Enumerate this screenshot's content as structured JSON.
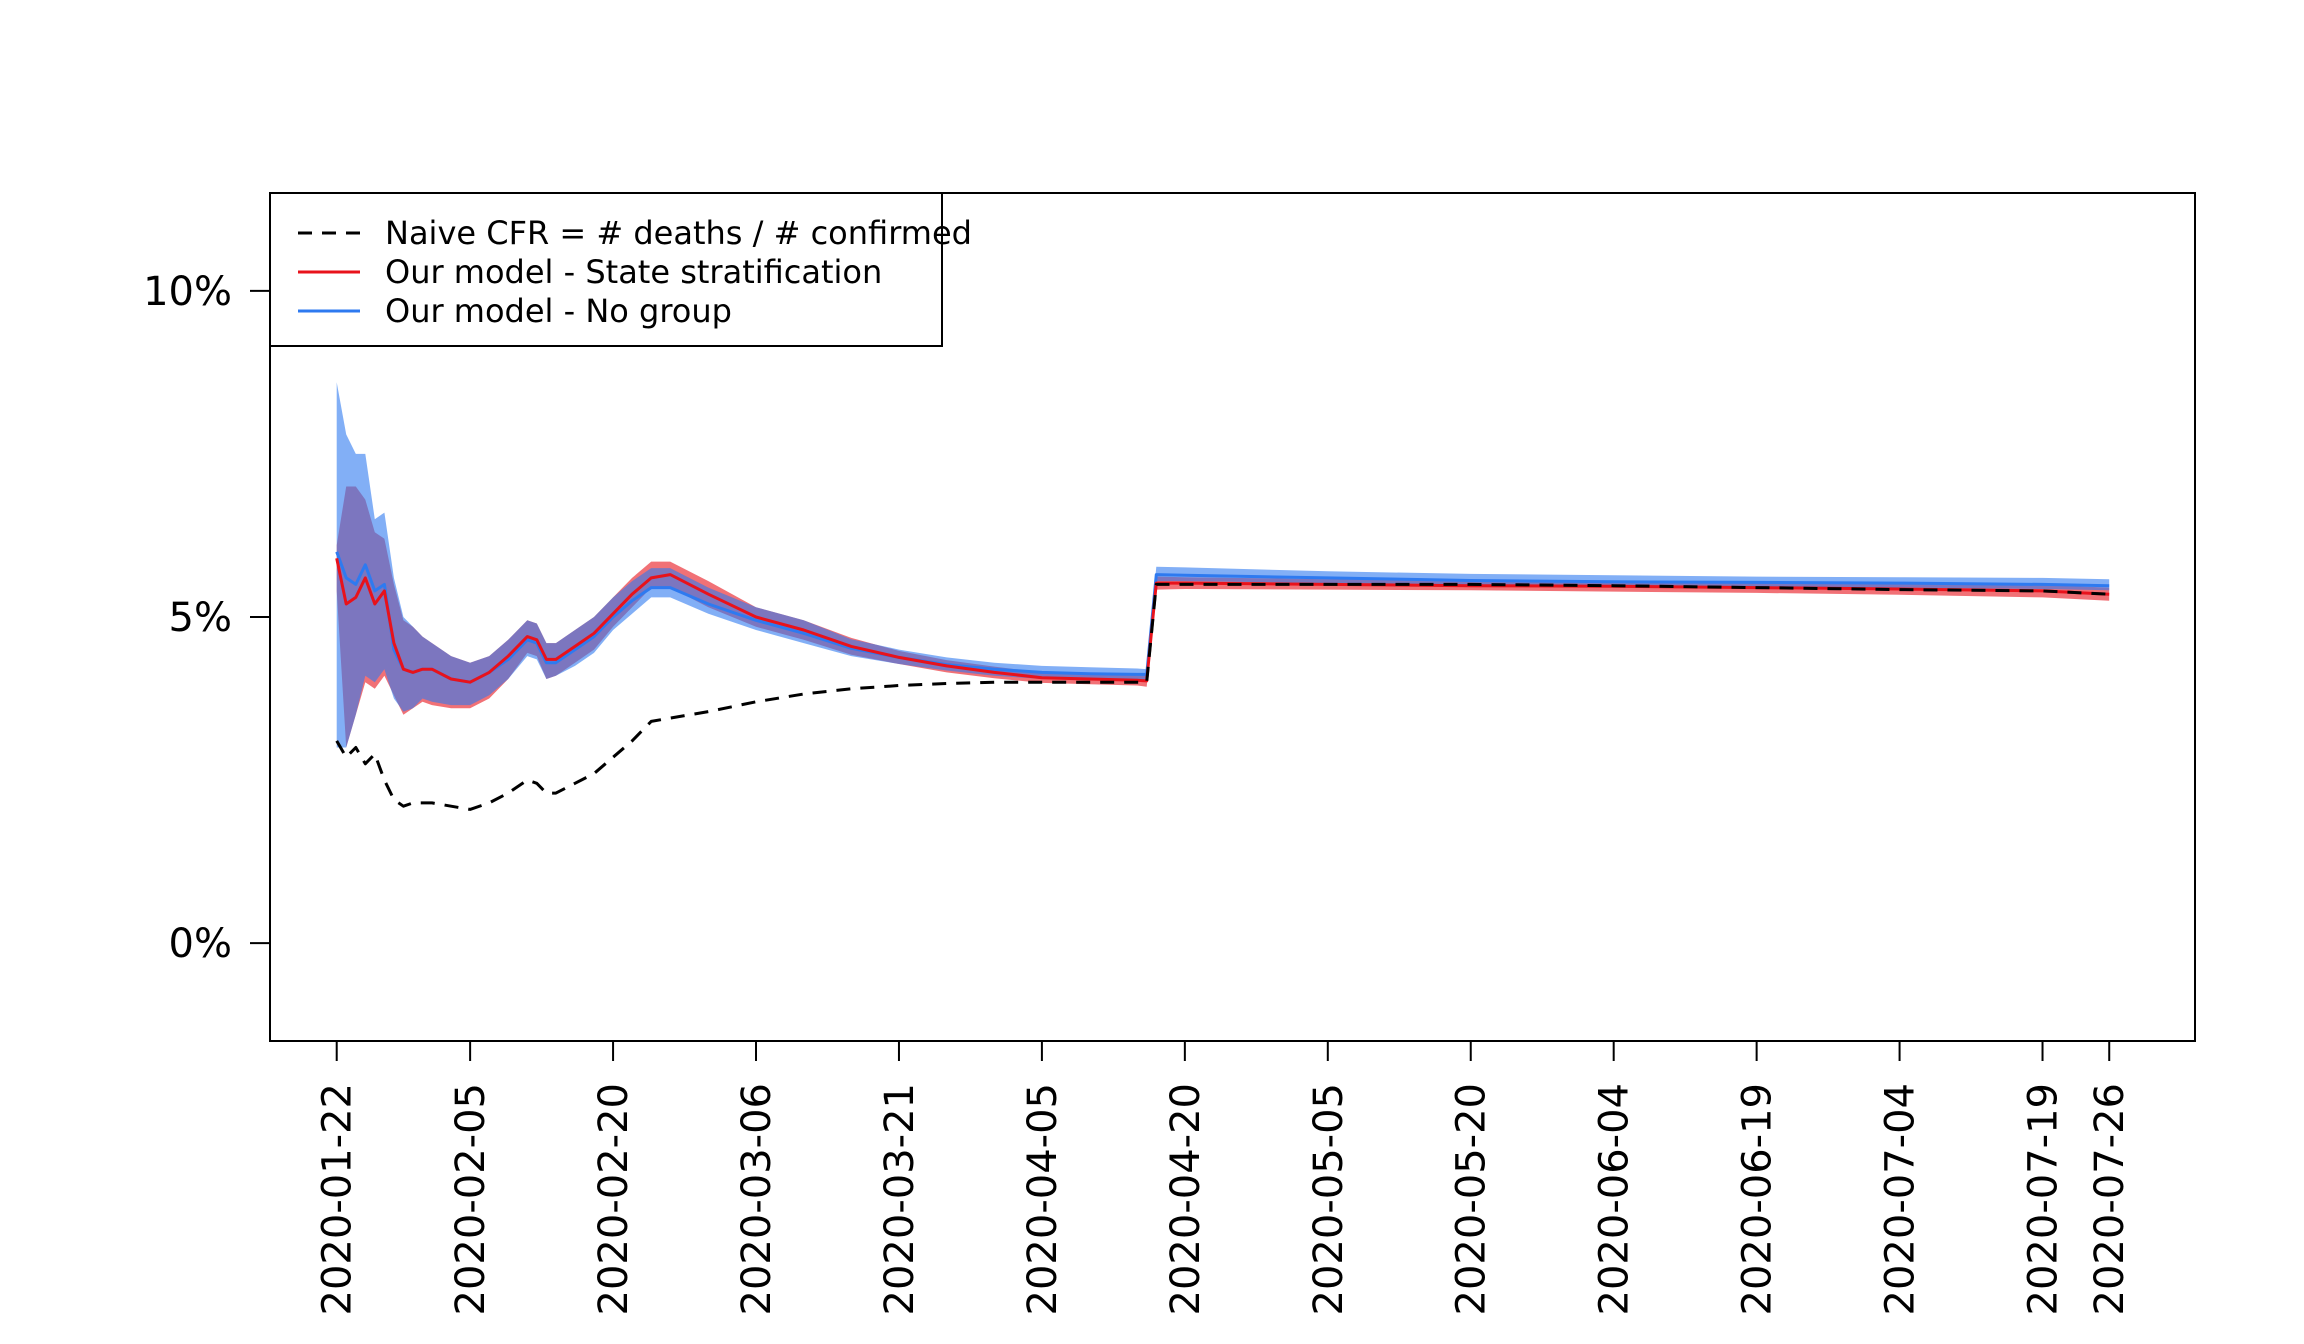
{
  "chart_data": {
    "type": "line",
    "title": "",
    "xlabel": "",
    "ylabel": "",
    "ylim": [
      -1.5,
      11.5
    ],
    "xlim": [
      "2020-01-15",
      "2020-08-04"
    ],
    "y_ticks": [
      {
        "value": 0,
        "label": "0%"
      },
      {
        "value": 5,
        "label": "5%"
      },
      {
        "value": 10,
        "label": "10%"
      }
    ],
    "x_ticks": [
      "2020-01-22",
      "2020-02-05",
      "2020-02-20",
      "2020-03-06",
      "2020-03-21",
      "2020-04-05",
      "2020-04-20",
      "2020-05-05",
      "2020-05-20",
      "2020-06-04",
      "2020-06-19",
      "2020-07-04",
      "2020-07-19",
      "2020-07-26"
    ],
    "legend": {
      "position": "top-left",
      "entries": [
        {
          "label": "Naive CFR = # deaths / # confirmed",
          "color": "#000000",
          "dash": "dashed"
        },
        {
          "label": "Our model - State stratification",
          "color": "#e8121b",
          "dash": "solid"
        },
        {
          "label": "Our model - No group",
          "color": "#2e7af0",
          "dash": "solid"
        }
      ]
    },
    "colors": {
      "naive": "#000000",
      "state": "#e8121b",
      "state_band": "#e8121b",
      "nogroup": "#2e7af0",
      "nogroup_band": "#2e7af0"
    },
    "series": [
      {
        "name": "Naive CFR = # deaths / # confirmed",
        "x": [
          "2020-01-22",
          "2020-01-23",
          "2020-01-24",
          "2020-01-25",
          "2020-01-26",
          "2020-01-27",
          "2020-01-28",
          "2020-01-29",
          "2020-01-30",
          "2020-01-31",
          "2020-02-01",
          "2020-02-03",
          "2020-02-05",
          "2020-02-07",
          "2020-02-09",
          "2020-02-11",
          "2020-02-12",
          "2020-02-13",
          "2020-02-14",
          "2020-02-16",
          "2020-02-18",
          "2020-02-20",
          "2020-02-22",
          "2020-02-24",
          "2020-02-26",
          "2020-03-01",
          "2020-03-06",
          "2020-03-11",
          "2020-03-16",
          "2020-03-21",
          "2020-03-26",
          "2020-03-31",
          "2020-04-05",
          "2020-04-10",
          "2020-04-15",
          "2020-04-16",
          "2020-04-17",
          "2020-04-20",
          "2020-05-05",
          "2020-05-20",
          "2020-06-04",
          "2020-06-19",
          "2020-07-04",
          "2020-07-19",
          "2020-07-26"
        ],
        "y": [
          3.1,
          2.85,
          3.0,
          2.75,
          2.9,
          2.5,
          2.2,
          2.1,
          2.15,
          2.15,
          2.15,
          2.1,
          2.05,
          2.15,
          2.3,
          2.5,
          2.45,
          2.3,
          2.3,
          2.45,
          2.6,
          2.85,
          3.1,
          3.4,
          3.45,
          3.55,
          3.7,
          3.82,
          3.9,
          3.95,
          3.98,
          4.0,
          4.0,
          4.0,
          4.0,
          4.0,
          5.5,
          5.5,
          5.5,
          5.5,
          5.48,
          5.45,
          5.42,
          5.4,
          5.35
        ]
      },
      {
        "name": "Our model - State stratification",
        "x": [
          "2020-01-22",
          "2020-01-23",
          "2020-01-24",
          "2020-01-25",
          "2020-01-26",
          "2020-01-27",
          "2020-01-28",
          "2020-01-29",
          "2020-01-30",
          "2020-01-31",
          "2020-02-01",
          "2020-02-03",
          "2020-02-05",
          "2020-02-07",
          "2020-02-09",
          "2020-02-11",
          "2020-02-12",
          "2020-02-13",
          "2020-02-14",
          "2020-02-16",
          "2020-02-18",
          "2020-02-20",
          "2020-02-22",
          "2020-02-24",
          "2020-02-26",
          "2020-03-01",
          "2020-03-06",
          "2020-03-11",
          "2020-03-16",
          "2020-03-21",
          "2020-03-26",
          "2020-03-31",
          "2020-04-05",
          "2020-04-10",
          "2020-04-15",
          "2020-04-16",
          "2020-04-17",
          "2020-04-20",
          "2020-05-05",
          "2020-05-20",
          "2020-06-04",
          "2020-06-19",
          "2020-07-04",
          "2020-07-19",
          "2020-07-26"
        ],
        "y": [
          5.9,
          5.2,
          5.3,
          5.6,
          5.2,
          5.4,
          4.6,
          4.2,
          4.15,
          4.2,
          4.2,
          4.05,
          4.0,
          4.15,
          4.4,
          4.7,
          4.65,
          4.35,
          4.35,
          4.55,
          4.75,
          5.05,
          5.35,
          5.6,
          5.65,
          5.35,
          5.0,
          4.8,
          4.55,
          4.38,
          4.25,
          4.15,
          4.07,
          4.05,
          4.03,
          4.02,
          5.52,
          5.52,
          5.5,
          5.48,
          5.47,
          5.45,
          5.43,
          5.4,
          5.35
        ],
        "lower": [
          5.4,
          3.0,
          3.5,
          4.0,
          3.9,
          4.1,
          3.8,
          3.5,
          3.6,
          3.7,
          3.65,
          3.6,
          3.6,
          3.75,
          4.05,
          4.45,
          4.4,
          4.05,
          4.1,
          4.3,
          4.5,
          4.85,
          5.15,
          5.45,
          5.45,
          5.15,
          4.85,
          4.65,
          4.42,
          4.28,
          4.15,
          4.06,
          3.99,
          3.97,
          3.95,
          3.93,
          5.42,
          5.43,
          5.42,
          5.41,
          5.39,
          5.37,
          5.34,
          5.3,
          5.25
        ],
        "upper": [
          6.1,
          7.0,
          7.0,
          6.8,
          6.3,
          6.2,
          5.5,
          4.95,
          4.85,
          4.7,
          4.6,
          4.4,
          4.3,
          4.4,
          4.65,
          4.95,
          4.9,
          4.6,
          4.6,
          4.8,
          5.0,
          5.3,
          5.6,
          5.85,
          5.85,
          5.55,
          5.15,
          4.95,
          4.68,
          4.48,
          4.34,
          4.24,
          4.15,
          4.13,
          4.11,
          4.1,
          5.62,
          5.61,
          5.58,
          5.56,
          5.55,
          5.53,
          5.51,
          5.49,
          5.45
        ]
      },
      {
        "name": "Our model - No group",
        "x": [
          "2020-01-22",
          "2020-01-23",
          "2020-01-24",
          "2020-01-25",
          "2020-01-26",
          "2020-01-27",
          "2020-01-28",
          "2020-01-29",
          "2020-01-30",
          "2020-01-31",
          "2020-02-01",
          "2020-02-03",
          "2020-02-05",
          "2020-02-07",
          "2020-02-09",
          "2020-02-11",
          "2020-02-12",
          "2020-02-13",
          "2020-02-14",
          "2020-02-16",
          "2020-02-18",
          "2020-02-20",
          "2020-02-22",
          "2020-02-24",
          "2020-02-26",
          "2020-03-01",
          "2020-03-06",
          "2020-03-11",
          "2020-03-16",
          "2020-03-21",
          "2020-03-26",
          "2020-03-31",
          "2020-04-05",
          "2020-04-10",
          "2020-04-15",
          "2020-04-16",
          "2020-04-17",
          "2020-04-20",
          "2020-05-05",
          "2020-05-20",
          "2020-06-04",
          "2020-06-19",
          "2020-07-04",
          "2020-07-19",
          "2020-07-26"
        ],
        "y": [
          6.0,
          5.6,
          5.5,
          5.8,
          5.4,
          5.5,
          4.5,
          4.2,
          4.15,
          4.2,
          4.2,
          4.05,
          4.0,
          4.15,
          4.35,
          4.65,
          4.6,
          4.3,
          4.3,
          4.5,
          4.7,
          5.0,
          5.25,
          5.45,
          5.45,
          5.2,
          4.95,
          4.75,
          4.52,
          4.38,
          4.27,
          4.2,
          4.15,
          4.13,
          4.12,
          4.12,
          5.65,
          5.64,
          5.6,
          5.56,
          5.54,
          5.53,
          5.52,
          5.5,
          5.48
        ],
        "lower": [
          3.0,
          3.0,
          3.5,
          4.1,
          4.0,
          4.2,
          3.75,
          3.55,
          3.6,
          3.75,
          3.7,
          3.65,
          3.65,
          3.8,
          4.05,
          4.4,
          4.35,
          4.05,
          4.1,
          4.25,
          4.45,
          4.8,
          5.05,
          5.3,
          5.3,
          5.05,
          4.8,
          4.6,
          4.4,
          4.28,
          4.18,
          4.1,
          4.05,
          4.04,
          4.03,
          4.03,
          5.55,
          5.55,
          5.52,
          5.49,
          5.47,
          5.46,
          5.45,
          5.43,
          5.41
        ],
        "upper": [
          8.6,
          7.8,
          7.5,
          7.5,
          6.5,
          6.6,
          5.6,
          5.0,
          4.85,
          4.7,
          4.6,
          4.4,
          4.3,
          4.4,
          4.65,
          4.95,
          4.9,
          4.6,
          4.6,
          4.8,
          5.0,
          5.3,
          5.55,
          5.75,
          5.75,
          5.45,
          5.15,
          4.95,
          4.66,
          4.5,
          4.38,
          4.3,
          4.25,
          4.23,
          4.21,
          4.2,
          5.77,
          5.76,
          5.7,
          5.66,
          5.64,
          5.62,
          5.61,
          5.6,
          5.58
        ]
      }
    ]
  }
}
